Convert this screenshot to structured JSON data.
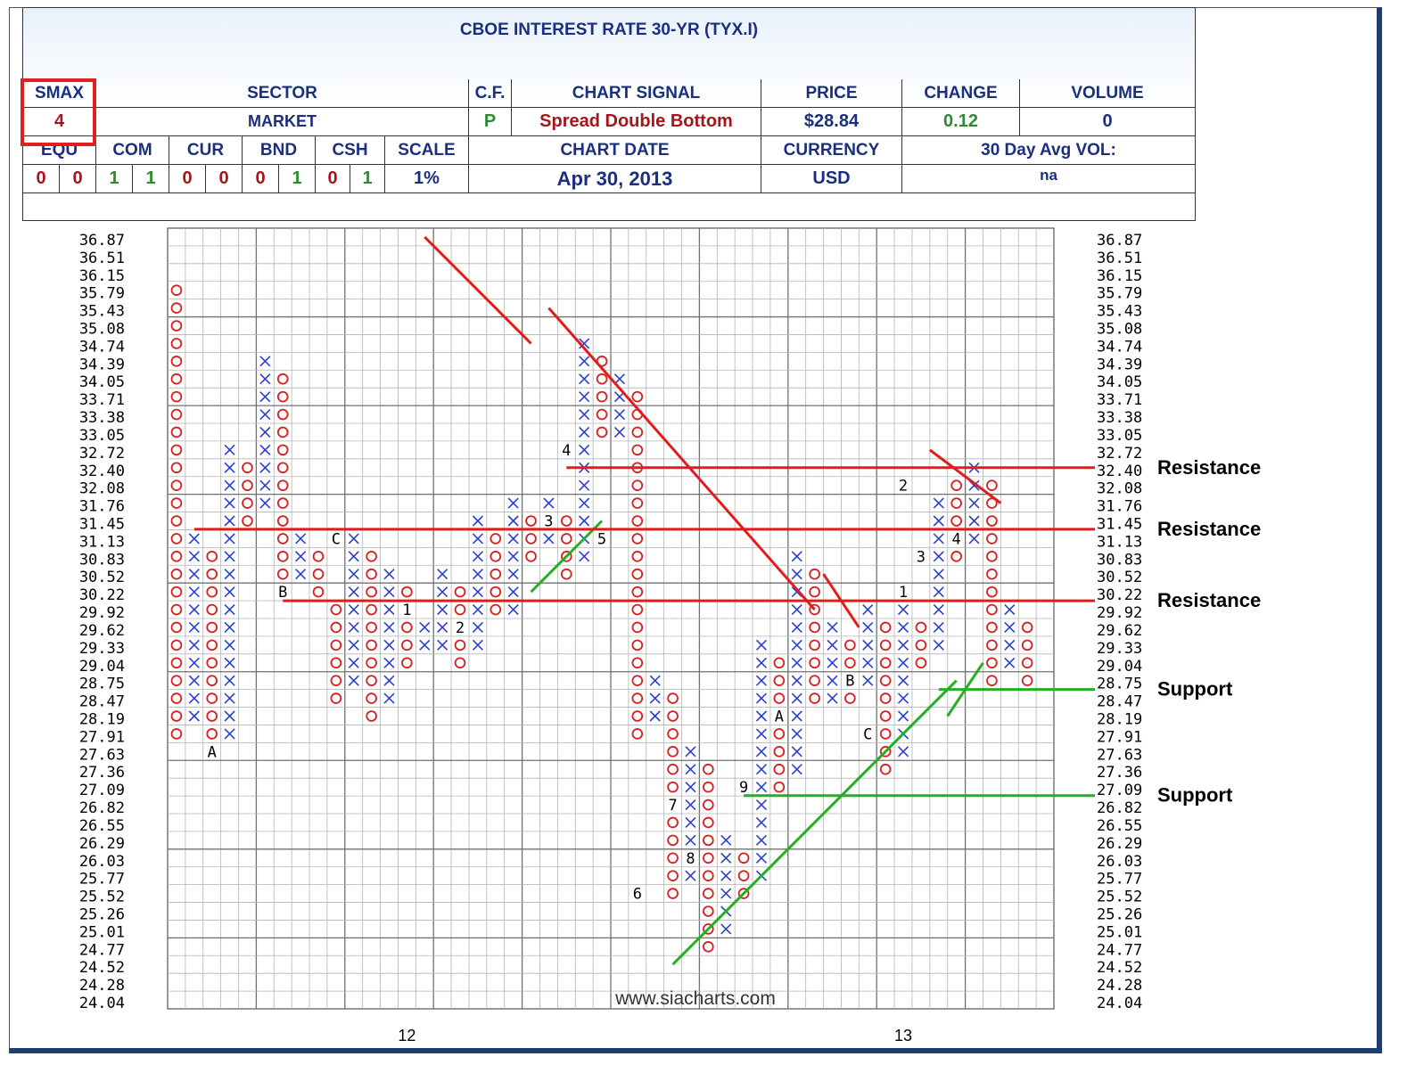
{
  "header": {
    "title": "CBOE INTEREST RATE 30-YR (TYX.I)",
    "smax_label": "SMAX",
    "smax_value": "4",
    "sector_label": "SECTOR",
    "sector_value": "MARKET",
    "cf_label": "C.F.",
    "cf_value": "P",
    "signal_label": "CHART SIGNAL",
    "signal_value": "Spread Double Bottom",
    "price_label": "PRICE",
    "price_value": "$28.84",
    "change_label": "CHANGE",
    "change_value": "0.12",
    "volume_label": "VOLUME",
    "volume_value": "0",
    "equ_label": "EQU",
    "com_label": "COM",
    "cur_label": "CUR",
    "bnd_label": "BND",
    "csh_label": "CSH",
    "scale_label": "SCALE",
    "scale_value": "1%",
    "chartdate_label": "CHART DATE",
    "chartdate_value": "Apr 30, 2013",
    "currency_label": "CURRENCY",
    "currency_value": "USD",
    "avgvol_label": "30 Day Avg VOL:",
    "avgvol_value": "na",
    "equ": [
      "0",
      "0"
    ],
    "com": [
      "1",
      "1"
    ],
    "cur": [
      "0",
      "0"
    ],
    "bnd": [
      "0",
      "1"
    ],
    "csh": [
      "0",
      "1"
    ]
  },
  "chart_data": {
    "type": "point-and-figure",
    "box_prices": [
      36.87,
      36.51,
      36.15,
      35.79,
      35.43,
      35.08,
      34.74,
      34.39,
      34.05,
      33.71,
      33.38,
      33.05,
      32.72,
      32.4,
      32.08,
      31.76,
      31.45,
      31.13,
      30.83,
      30.52,
      30.22,
      29.92,
      29.62,
      29.33,
      29.04,
      28.75,
      28.47,
      28.19,
      27.91,
      27.63,
      27.36,
      27.09,
      26.82,
      26.55,
      26.29,
      26.03,
      25.77,
      25.52,
      25.26,
      25.01,
      24.77,
      24.52,
      24.28,
      24.04
    ],
    "x_labels": [
      {
        "text": "12",
        "col": 13
      },
      {
        "text": "13",
        "col": 41
      }
    ],
    "columns": [
      {
        "type": "O",
        "top": 35.79,
        "bottom": 27.91
      },
      {
        "type": "X",
        "top": 31.13,
        "bottom": 28.19
      },
      {
        "type": "O",
        "top": 30.83,
        "bottom": 27.91
      },
      {
        "type": "X",
        "top": 32.72,
        "bottom": 27.91
      },
      {
        "type": "O",
        "top": 32.4,
        "bottom": 31.45
      },
      {
        "type": "X",
        "top": 34.39,
        "bottom": 31.76
      },
      {
        "type": "O",
        "top": 34.05,
        "bottom": 30.52
      },
      {
        "type": "X",
        "top": 31.13,
        "bottom": 30.52
      },
      {
        "type": "O",
        "top": 30.83,
        "bottom": 30.22
      },
      {
        "type": "O",
        "top": 29.92,
        "bottom": 28.47
      },
      {
        "type": "X",
        "top": 31.13,
        "bottom": 28.75
      },
      {
        "type": "O",
        "top": 30.83,
        "bottom": 28.19
      },
      {
        "type": "X",
        "top": 30.52,
        "bottom": 28.47
      },
      {
        "type": "O",
        "top": 30.22,
        "bottom": 29.04
      },
      {
        "type": "X",
        "top": 29.62,
        "bottom": 29.33
      },
      {
        "type": "X",
        "top": 30.52,
        "bottom": 29.33
      },
      {
        "type": "O",
        "top": 30.22,
        "bottom": 29.04
      },
      {
        "type": "X",
        "top": 31.45,
        "bottom": 29.33
      },
      {
        "type": "O",
        "top": 31.13,
        "bottom": 29.92
      },
      {
        "type": "X",
        "top": 31.76,
        "bottom": 29.92
      },
      {
        "type": "O",
        "top": 31.45,
        "bottom": 30.83
      },
      {
        "type": "X",
        "top": 31.76,
        "bottom": 31.13
      },
      {
        "type": "O",
        "top": 31.45,
        "bottom": 30.52
      },
      {
        "type": "X",
        "top": 34.74,
        "bottom": 30.83
      },
      {
        "type": "O",
        "top": 34.39,
        "bottom": 33.05
      },
      {
        "type": "X",
        "top": 34.05,
        "bottom": 33.05
      },
      {
        "type": "O",
        "top": 33.71,
        "bottom": 27.91
      },
      {
        "type": "X",
        "top": 28.75,
        "bottom": 28.19
      },
      {
        "type": "O",
        "top": 28.47,
        "bottom": 25.52
      },
      {
        "type": "X",
        "top": 27.63,
        "bottom": 25.77
      },
      {
        "type": "O",
        "top": 27.36,
        "bottom": 24.77
      },
      {
        "type": "X",
        "top": 26.29,
        "bottom": 25.01
      },
      {
        "type": "O",
        "top": 26.03,
        "bottom": 25.52
      },
      {
        "type": "X",
        "top": 29.33,
        "bottom": 25.77
      },
      {
        "type": "O",
        "top": 29.04,
        "bottom": 27.09
      },
      {
        "type": "X",
        "top": 30.83,
        "bottom": 27.36
      },
      {
        "type": "O",
        "top": 30.52,
        "bottom": 28.47
      },
      {
        "type": "X",
        "top": 29.62,
        "bottom": 28.47
      },
      {
        "type": "O",
        "top": 29.33,
        "bottom": 28.47
      },
      {
        "type": "X",
        "top": 29.92,
        "bottom": 28.75
      },
      {
        "type": "O",
        "top": 29.62,
        "bottom": 27.36
      },
      {
        "type": "X",
        "top": 29.92,
        "bottom": 27.63
      },
      {
        "type": "O",
        "top": 29.62,
        "bottom": 29.04
      },
      {
        "type": "X",
        "top": 31.76,
        "bottom": 29.33
      },
      {
        "type": "O",
        "top": 32.08,
        "bottom": 30.83
      },
      {
        "type": "X",
        "top": 32.4,
        "bottom": 31.13
      },
      {
        "type": "O",
        "top": 32.08,
        "bottom": 28.75
      },
      {
        "type": "X",
        "top": 29.92,
        "bottom": 29.04
      },
      {
        "type": "O",
        "top": 29.62,
        "bottom": 28.75
      }
    ],
    "month_markers": [
      {
        "text": "A",
        "col": 2,
        "price": 27.63
      },
      {
        "text": "B",
        "col": 6,
        "price": 30.22
      },
      {
        "text": "C",
        "col": 9,
        "price": 31.13
      },
      {
        "text": "1",
        "col": 13,
        "price": 29.92
      },
      {
        "text": "2",
        "col": 16,
        "price": 29.62
      },
      {
        "text": "3",
        "col": 21,
        "price": 31.45
      },
      {
        "text": "4",
        "col": 22,
        "price": 32.72
      },
      {
        "text": "5",
        "col": 24,
        "price": 31.13
      },
      {
        "text": "6",
        "col": 26,
        "price": 25.52
      },
      {
        "text": "7",
        "col": 28,
        "price": 26.82
      },
      {
        "text": "8",
        "col": 29,
        "price": 26.03
      },
      {
        "text": "9",
        "col": 32,
        "price": 27.09
      },
      {
        "text": "A",
        "col": 34,
        "price": 28.19
      },
      {
        "text": "B",
        "col": 38,
        "price": 28.75
      },
      {
        "text": "C",
        "col": 39,
        "price": 27.91
      },
      {
        "text": "1",
        "col": 41,
        "price": 30.22
      },
      {
        "text": "2",
        "col": 41,
        "price": 32.08
      },
      {
        "text": "3",
        "col": 42,
        "price": 30.83
      },
      {
        "text": "4",
        "col": 44,
        "price": 31.13
      }
    ],
    "trendlines": [
      {
        "color": "red",
        "from": [
          14,
          36.87
        ],
        "to": [
          20,
          34.74
        ]
      },
      {
        "color": "red",
        "from": [
          21,
          35.43
        ],
        "to": [
          36,
          29.92
        ]
      },
      {
        "color": "red",
        "from": [
          36.5,
          30.52
        ],
        "to": [
          38.5,
          29.62
        ]
      },
      {
        "color": "red",
        "from": [
          42.5,
          32.72
        ],
        "to": [
          46.5,
          31.76
        ]
      },
      {
        "color": "green",
        "from": [
          20,
          30.22
        ],
        "to": [
          24,
          31.45
        ]
      },
      {
        "color": "green",
        "from": [
          28,
          24.52
        ],
        "to": [
          44,
          28.75
        ]
      },
      {
        "color": "green",
        "from": [
          43.5,
          28.19
        ],
        "to": [
          45.5,
          29.04
        ]
      }
    ],
    "levels": [
      {
        "label": "Resistance",
        "price": 32.4,
        "color": "red",
        "from_col": 22
      },
      {
        "label": "Resistance",
        "price": 31.3,
        "color": "red",
        "from_col": 1
      },
      {
        "label": "Resistance",
        "price": 30.07,
        "color": "red",
        "from_col": 6
      },
      {
        "label": "Support",
        "price": 28.61,
        "color": "green",
        "from_col": 43
      },
      {
        "label": "Support",
        "price": 26.96,
        "color": "green",
        "from_col": 32
      }
    ],
    "watermark": "www.siacharts.com",
    "colors": {
      "x": "#2a3fcf",
      "o": "#d81e1e",
      "grid": "#b4b4b4",
      "major": "#707070"
    }
  }
}
